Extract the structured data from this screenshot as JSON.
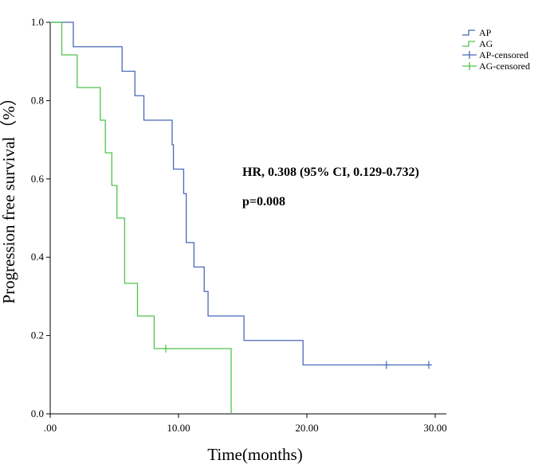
{
  "chart_data": {
    "type": "line",
    "subtype": "kaplan-meier",
    "xlabel": "Time(months)",
    "ylabel": "Progression free survival（%）",
    "xlim": [
      0,
      30
    ],
    "ylim": [
      0,
      1.0
    ],
    "x_ticks": [
      0,
      10,
      20,
      30
    ],
    "x_tick_labels": [
      ".00",
      "10.00",
      "20.00",
      "30.00"
    ],
    "y_ticks": [
      0,
      0.2,
      0.4,
      0.6,
      0.8,
      1.0
    ],
    "y_tick_labels": [
      "0.0",
      "0.2",
      "0.4",
      "0.6",
      "0.8",
      "1.0"
    ],
    "legend_position": "top-right",
    "grid": false,
    "series": [
      {
        "name": "AP",
        "color": "#4a68b8",
        "steps": [
          [
            0,
            1.0
          ],
          [
            1.8,
            0.9375
          ],
          [
            5.6,
            0.875
          ],
          [
            6.6,
            0.8125
          ],
          [
            7.3,
            0.75
          ],
          [
            9.5,
            0.6875
          ],
          [
            9.6,
            0.625
          ],
          [
            10.4,
            0.5625
          ],
          [
            10.6,
            0.4375
          ],
          [
            11.2,
            0.375
          ],
          [
            12.0,
            0.3125
          ],
          [
            12.3,
            0.25
          ],
          [
            15.1,
            0.1875
          ],
          [
            19.7,
            0.125
          ],
          [
            29.5,
            0.125
          ]
        ],
        "censored": [
          [
            26.2,
            0.125
          ],
          [
            29.5,
            0.125
          ]
        ]
      },
      {
        "name": "AG",
        "color": "#4fc44f",
        "steps": [
          [
            0,
            1.0
          ],
          [
            0.9,
            0.9167
          ],
          [
            2.1,
            0.8333
          ],
          [
            3.9,
            0.75
          ],
          [
            4.3,
            0.6667
          ],
          [
            4.8,
            0.5833
          ],
          [
            5.2,
            0.5
          ],
          [
            5.8,
            0.3333
          ],
          [
            6.8,
            0.25
          ],
          [
            8.1,
            0.1667
          ],
          [
            14.1,
            0.0
          ]
        ],
        "censored": [
          [
            9.0,
            0.1667
          ]
        ]
      }
    ],
    "legend": [
      {
        "label": "AP",
        "kind": "line",
        "color": "#4a68b8"
      },
      {
        "label": "AG",
        "kind": "line",
        "color": "#4fc44f"
      },
      {
        "label": "AP-censored",
        "kind": "censor",
        "color": "#4a68b8"
      },
      {
        "label": "AG-censored",
        "kind": "censor",
        "color": "#4fc44f"
      }
    ],
    "annotations": [
      "HR, 0.308 (95% CI, 0.129-0.732)",
      "p=0.008"
    ]
  }
}
